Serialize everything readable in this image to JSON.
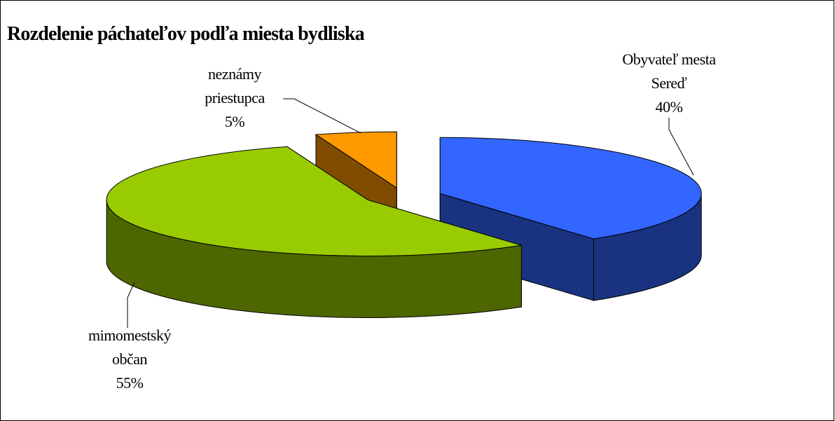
{
  "chart_data": {
    "type": "pie",
    "title": "Rozdelenie páchateľov podľa miesta bydliska",
    "categories": [
      "Obyvateľ mesta Sereď",
      "mimomestský občan",
      "neznámy priestupca"
    ],
    "values": [
      40,
      55,
      5
    ],
    "value_labels": [
      "40%",
      "55%",
      "5%"
    ],
    "colors": [
      "#3366ff",
      "#99cc00",
      "#ff9900"
    ]
  }
}
